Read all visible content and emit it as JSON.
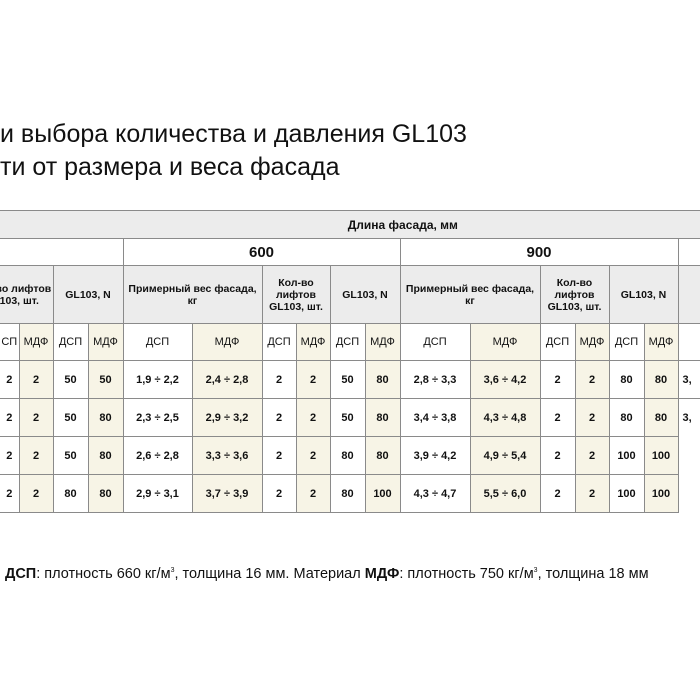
{
  "title": {
    "line1": "и выбора количества и давления GL103",
    "line2": "ти от размера и веса фасада"
  },
  "table": {
    "header_length": "Длина фасада, мм",
    "sizes": [
      "600",
      "900"
    ],
    "group_lifts": "Кол-во лифтов GL103, шт.",
    "group_n": "GL103, N",
    "group_weight": "Примерный вес фасада, кг",
    "sub": [
      "СП",
      "МДФ",
      "ДСП",
      "МДФ",
      "ДСП",
      "МДФ",
      "ДСП",
      "МДФ",
      "ДСП",
      "МДФ",
      "ДСП",
      "МДФ",
      "ДСП",
      "МДФ",
      "ДСП",
      "МДФ",
      ""
    ],
    "rows": [
      [
        "2",
        "2",
        "50",
        "50",
        "1,9 ÷ 2,2",
        "2,4 ÷ 2,8",
        "2",
        "2",
        "50",
        "80",
        "2,8 ÷ 3,3",
        "3,6 ÷ 4,2",
        "2",
        "2",
        "80",
        "80",
        "3,"
      ],
      [
        "2",
        "2",
        "50",
        "80",
        "2,3 ÷ 2,5",
        "2,9 ÷ 3,2",
        "2",
        "2",
        "50",
        "80",
        "3,4 ÷ 3,8",
        "4,3 ÷ 4,8",
        "2",
        "2",
        "80",
        "80",
        "3,"
      ],
      [
        "2",
        "2",
        "50",
        "80",
        "2,6 ÷ 2,8",
        "3,3 ÷ 3,6",
        "2",
        "2",
        "80",
        "80",
        "3,9 ÷ 4,2",
        "4,9 ÷ 5,4",
        "2",
        "2",
        "100",
        "100",
        ""
      ],
      [
        "2",
        "2",
        "80",
        "80",
        "2,9 ÷ 3,1",
        "3,7 ÷ 3,9",
        "2",
        "2",
        "80",
        "100",
        "4,3 ÷ 4,7",
        "5,5 ÷ 6,0",
        "2",
        "2",
        "100",
        "100",
        ""
      ]
    ]
  },
  "footer": {
    "dsp": "ДСП",
    "part1": ": плотность 660 кг/м",
    "sup1": "3",
    "part2": ", толщина 16 мм. Материал ",
    "mdf": "МДФ",
    "part3": ": плотность 750 кг/м",
    "sup2": "3",
    "part4": ", толщина 18 мм"
  },
  "colors": {
    "header_bg": "#ececec",
    "mdf_bg": "#f7f4e6",
    "border": "#8a8a8a"
  }
}
